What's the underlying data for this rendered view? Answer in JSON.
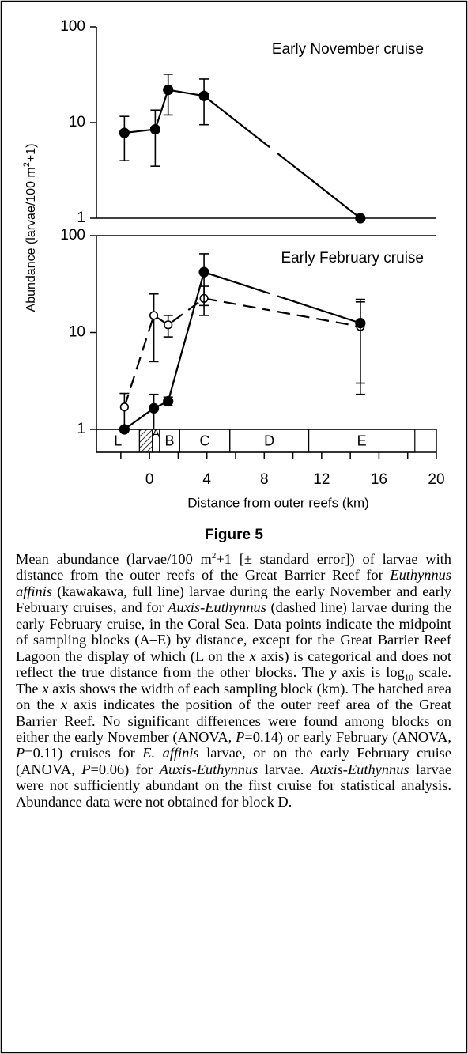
{
  "ylabel": [
    {
      "text": "Abundance (larvae/100 m"
    },
    {
      "text": "2",
      "format": "sup"
    },
    {
      "text": "+1)"
    }
  ],
  "chart_data": [
    {
      "type": "line",
      "title": "Early November cruise",
      "log_y": true,
      "ylim": [
        1,
        100
      ],
      "yticks": [
        1,
        10,
        100
      ],
      "xlim": [
        -3.7,
        20
      ],
      "series": [
        {
          "color": "#000000",
          "marker": "filled",
          "dashed": false,
          "x": [
            -1.75,
            0.4,
            1.3,
            3.8,
            14.7
          ],
          "values": [
            7.8,
            8.5,
            22,
            19,
            1
          ],
          "errors": [
            3.8,
            5,
            10,
            9.5,
            null
          ]
        }
      ]
    },
    {
      "type": "line",
      "title": "Early February cruise",
      "log_y": true,
      "ylim": [
        1,
        100
      ],
      "yticks": [
        1,
        10,
        100
      ],
      "xlim": [
        -3.7,
        20
      ],
      "xticks": [
        0,
        4,
        8,
        12,
        16,
        20
      ],
      "xminor": [
        -2,
        2,
        6,
        10,
        14,
        18
      ],
      "xlabel": "Distance from outer reefs (km)",
      "blocks": [
        {
          "label": "L",
          "start": -3.7,
          "end": -0.7
        },
        {
          "label": null,
          "start": -0.7,
          "end": 0.2,
          "hatched": true
        },
        {
          "label": "A",
          "start": 0.2,
          "end": 0.7
        },
        {
          "label": "B",
          "start": 0.7,
          "end": 2.1
        },
        {
          "label": "C",
          "start": 2.1,
          "end": 5.6
        },
        {
          "label": "D",
          "start": 5.6,
          "end": 11.1
        },
        {
          "label": "E",
          "start": 11.1,
          "end": 18.5
        }
      ],
      "series": [
        {
          "color": "#000000",
          "marker": "open",
          "dashed": true,
          "x": [
            -1.75,
            0.3,
            1.3,
            3.8,
            14.7
          ],
          "values": [
            1.7,
            15,
            12,
            22.5,
            11.5
          ],
          "errors": [
            0.65,
            10,
            3,
            7.5,
            9.2
          ]
        },
        {
          "color": "#000000",
          "marker": "filled",
          "dashed": false,
          "x": [
            -1.75,
            0.3,
            1.3,
            3.8,
            14.7
          ],
          "values": [
            1,
            1.65,
            1.95,
            42,
            12.5
          ],
          "errors": [
            null,
            0.65,
            0.2,
            23,
            9.5
          ]
        }
      ]
    }
  ],
  "figure_label": "Figure 5",
  "caption": [
    {
      "text": "Mean abundance (larvae/100 m"
    },
    {
      "text": "2",
      "format": "sup"
    },
    {
      "text": "+1 [± standard error]) of larvae with distance from the outer reefs of the Great Barrier Reef for "
    },
    {
      "text": "Euthynnus affinis",
      "format": "italic"
    },
    {
      "text": " (kawakawa, full line) larvae during the early November and early February cruises, and for "
    },
    {
      "text": "Auxis-Euthynnus",
      "format": "italic"
    },
    {
      "text": " (dashed line) larvae during the early February cruise, in the Coral Sea. Data points indicate the midpoint of sampling blocks (A–E) by distance, except for the Great Barrier Reef Lagoon the display of which (L on the "
    },
    {
      "text": "x",
      "format": "italic"
    },
    {
      "text": " axis) is categorical and does not reflect the true distance from the other blocks. The "
    },
    {
      "text": "y",
      "format": "italic"
    },
    {
      "text": " axis is log"
    },
    {
      "text": "10",
      "format": "sub"
    },
    {
      "text": " scale. The "
    },
    {
      "text": "x",
      "format": "italic"
    },
    {
      "text": " axis shows the width of each sampling block (km). The hatched area on the "
    },
    {
      "text": "x",
      "format": "italic"
    },
    {
      "text": " axis indicates the position of the outer reef area of the Great Barrier Reef. No significant differences were found among blocks on either the early November (ANOVA, "
    },
    {
      "text": "P",
      "format": "italic"
    },
    {
      "text": "=0.14) or early February (ANOVA, "
    },
    {
      "text": "P",
      "format": "italic"
    },
    {
      "text": "=0.11) cruises for "
    },
    {
      "text": "E. affinis",
      "format": "italic"
    },
    {
      "text": " larvae, or on the early February cruise (ANOVA, "
    },
    {
      "text": "P",
      "format": "italic"
    },
    {
      "text": "=0.06) for "
    },
    {
      "text": "Auxis-Euthynnus",
      "format": "italic"
    },
    {
      "text": " larvae. "
    },
    {
      "text": "Auxis-Euthynnus",
      "format": "italic"
    },
    {
      "text": " larvae were not sufficiently abundant on the first cruise for statistical analysis. Abundance data were not obtained for block D."
    }
  ]
}
